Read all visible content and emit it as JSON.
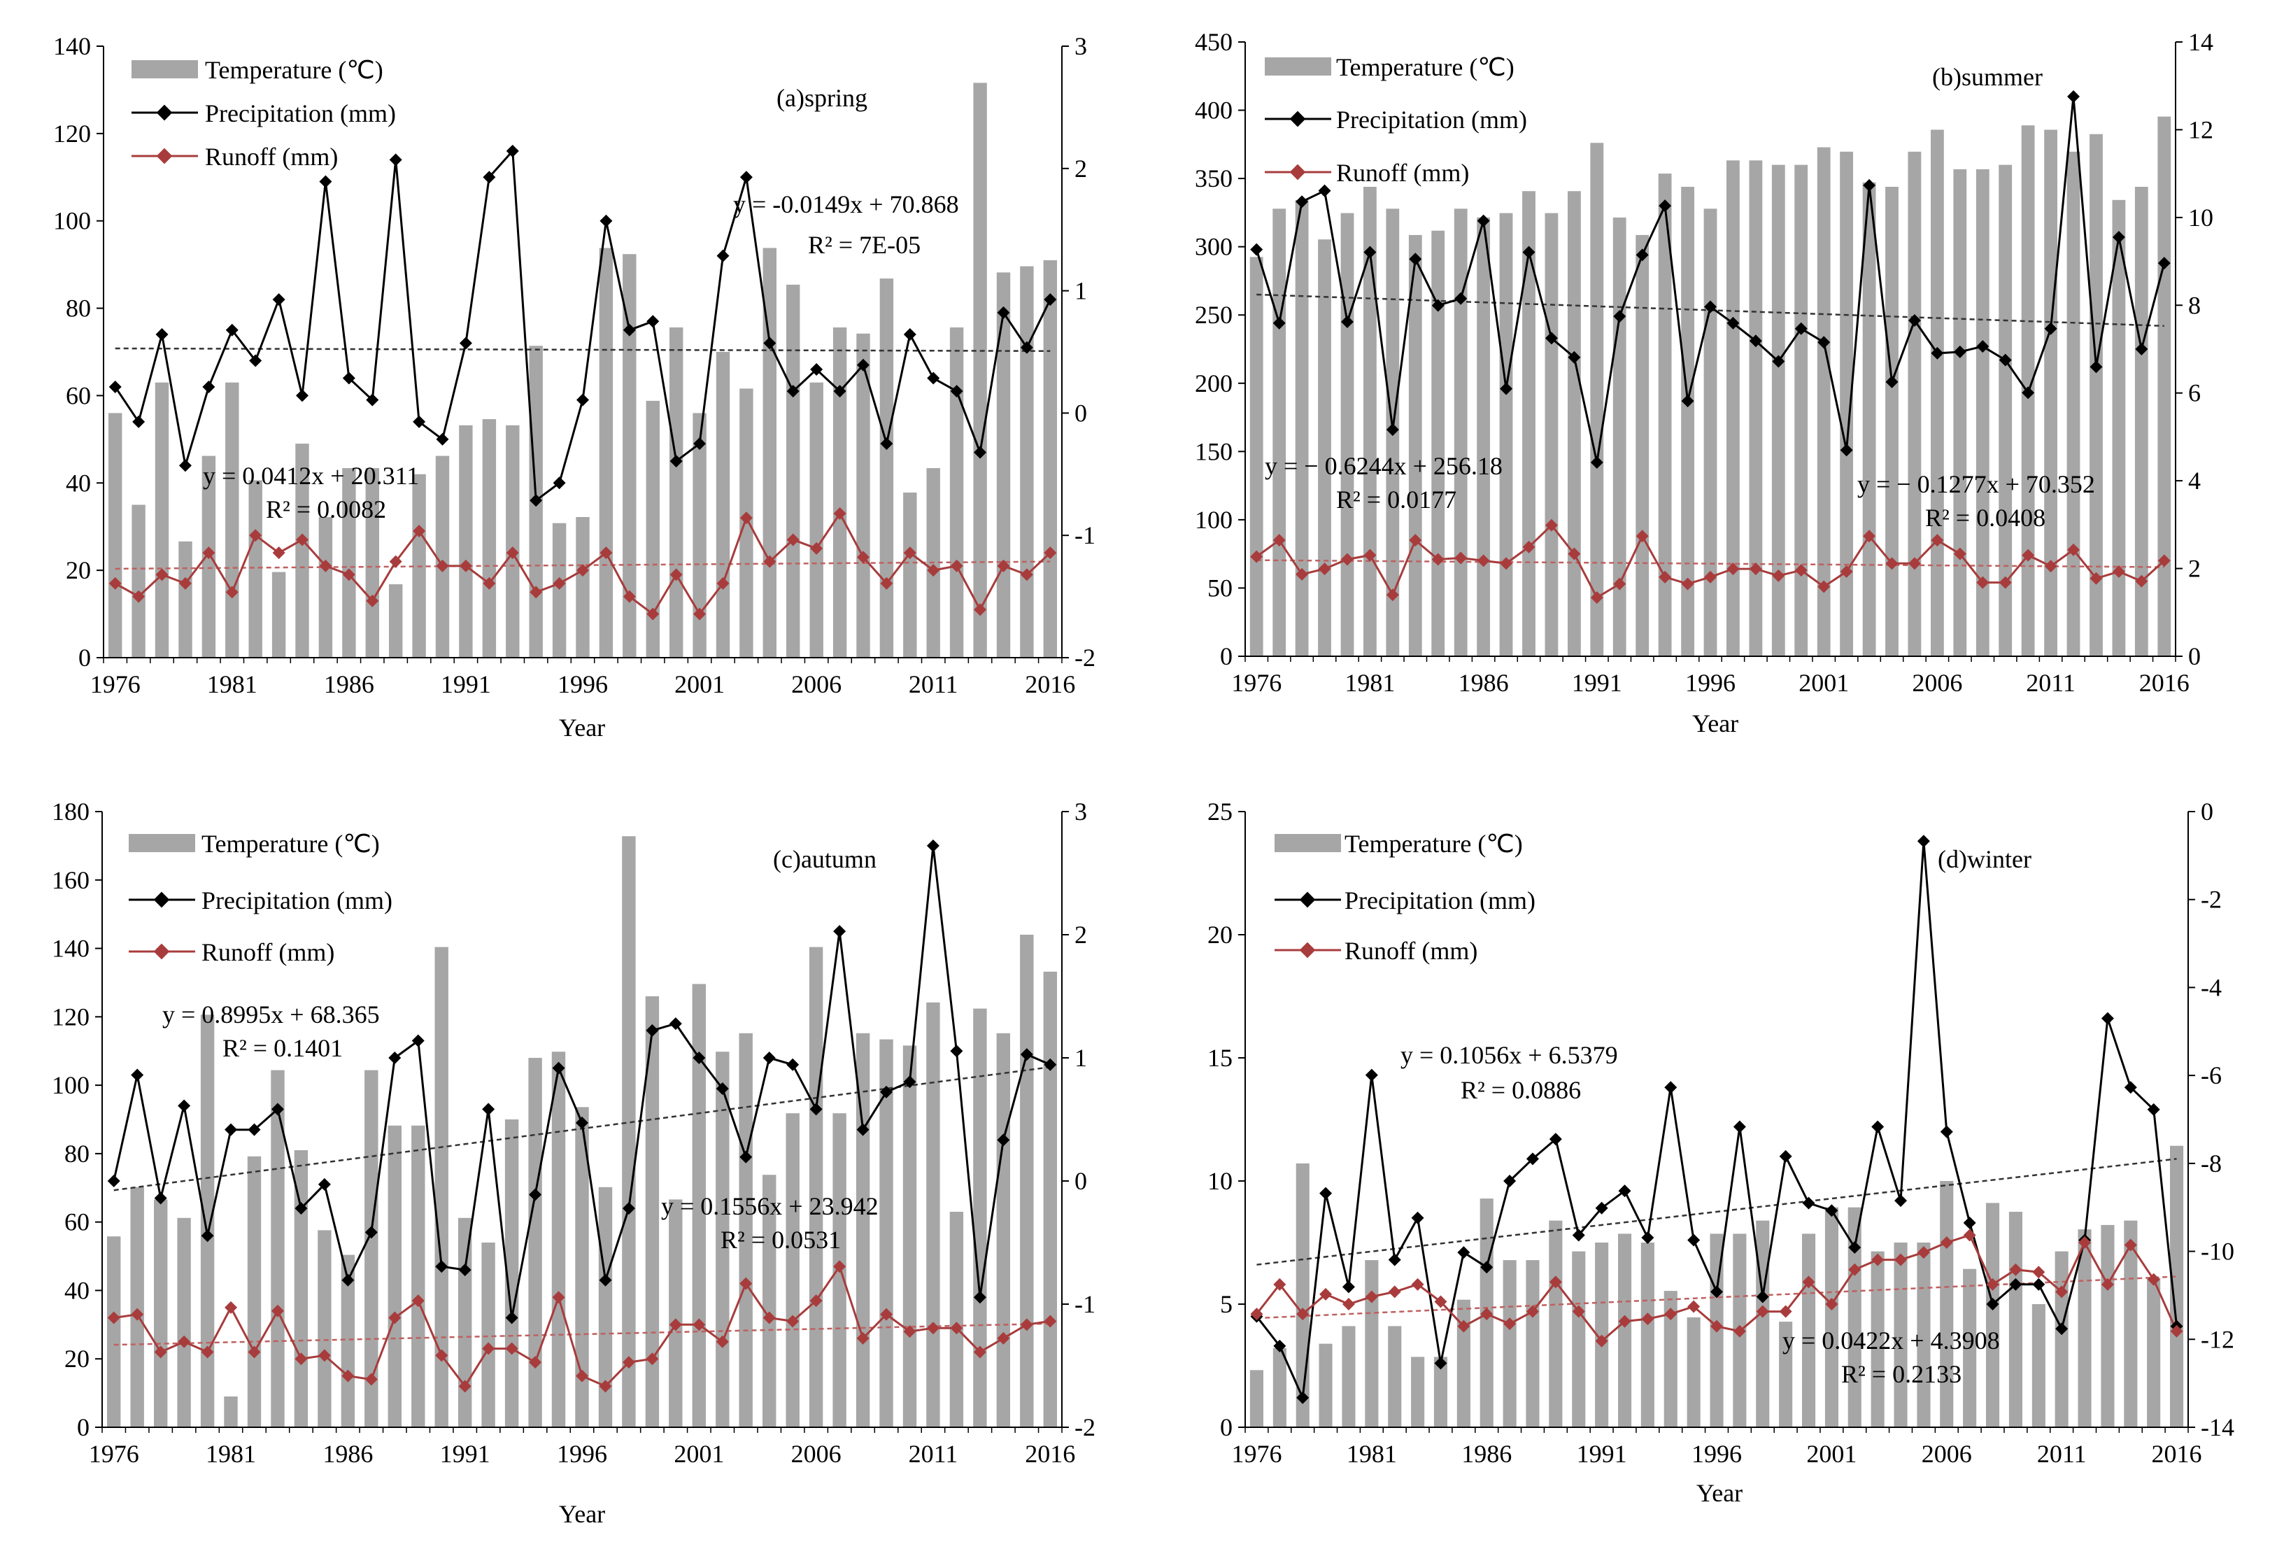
{
  "colors": {
    "bar": "#a6a6a6",
    "precip": "#000000",
    "runoff": "#a83c3c",
    "trend_precip": "#333333",
    "trend_runoff": "#c06060"
  },
  "chart_data": [
    {
      "type": "bar",
      "panel_label": "(a)spring",
      "xlabel": "Year",
      "x_ticks": [
        "1976",
        "1981",
        "1986",
        "1991",
        "1996",
        "2001",
        "2006",
        "2011",
        "2016"
      ],
      "years": [
        1976,
        1977,
        1978,
        1979,
        1980,
        1981,
        1982,
        1983,
        1984,
        1985,
        1986,
        1987,
        1988,
        1989,
        1990,
        1991,
        1992,
        1993,
        1994,
        1995,
        1996,
        1997,
        1998,
        1999,
        2000,
        2001,
        2002,
        2003,
        2004,
        2005,
        2006,
        2007,
        2008,
        2009,
        2010,
        2011,
        2012,
        2013,
        2014,
        2015,
        2016
      ],
      "left_axis": {
        "ticks": [
          "0",
          "20",
          "40",
          "60",
          "80",
          "100",
          "120",
          "140"
        ],
        "min": 0,
        "max": 140
      },
      "right_axis": {
        "ticks": [
          "-2",
          "-1",
          "0",
          "1",
          "2",
          "3"
        ],
        "min": -2,
        "max": 3
      },
      "legend": {
        "temperature": "Temperature (℃)",
        "precipitation": "Precipitation (mm)",
        "runoff": "Runoff (mm)"
      },
      "series": [
        {
          "name": "Temperature (℃)",
          "axis": "right",
          "values": [
            0,
            -0.75,
            0.25,
            -1.05,
            -0.35,
            0.25,
            -0.55,
            -1.3,
            -0.25,
            -0.85,
            -0.45,
            -0.45,
            -1.4,
            -0.5,
            -0.35,
            -0.1,
            -0.05,
            -0.1,
            0.55,
            -0.9,
            -0.85,
            1.35,
            1.3,
            0.1,
            0.7,
            0,
            0.5,
            0.2,
            1.35,
            1.05,
            0.25,
            0.7,
            0.65,
            1.1,
            -0.65,
            -0.45,
            0.7,
            2.7,
            1.15,
            1.2,
            1.25
          ]
        },
        {
          "name": "Precipitation (mm)",
          "axis": "left",
          "values": [
            62,
            54,
            74,
            44,
            62,
            75,
            68,
            82,
            60,
            109,
            64,
            59,
            114,
            54,
            50,
            72,
            110,
            116,
            36,
            40,
            59,
            100,
            75,
            77,
            45,
            49,
            92,
            110,
            72,
            61,
            66,
            61,
            67,
            49,
            74,
            64,
            61,
            47,
            79,
            71,
            82
          ]
        },
        {
          "name": "Runoff (mm)",
          "axis": "left",
          "values": [
            17,
            14,
            19,
            17,
            24,
            15,
            28,
            24,
            27,
            21,
            19,
            13,
            22,
            29,
            21,
            21,
            17,
            24,
            15,
            17,
            20,
            24,
            14,
            10,
            19,
            10,
            17,
            32,
            22,
            27,
            25,
            33,
            23,
            17,
            24,
            20,
            21,
            11,
            21,
            19,
            24
          ]
        }
      ],
      "trend_precip": [
        70.8,
        70.2
      ],
      "trend_runoff": [
        20.35,
        22.0
      ],
      "annotations": [
        {
          "text": "y = -0.0149x  + 70.868"
        },
        {
          "text": "R² = 7E-05"
        },
        {
          "text": "y = 0.0412x  + 20.311"
        },
        {
          "text": "R² = 0.0082"
        }
      ]
    },
    {
      "type": "bar",
      "panel_label": "(b)summer",
      "xlabel": "Year",
      "x_ticks": [
        "1976",
        "1981",
        "1986",
        "1991",
        "1996",
        "2001",
        "2006",
        "2011",
        "2016"
      ],
      "years": [
        1976,
        1977,
        1978,
        1979,
        1980,
        1981,
        1982,
        1983,
        1984,
        1985,
        1986,
        1987,
        1988,
        1989,
        1990,
        1991,
        1992,
        1993,
        1994,
        1995,
        1996,
        1997,
        1998,
        1999,
        2000,
        2001,
        2002,
        2003,
        2004,
        2005,
        2006,
        2007,
        2008,
        2009,
        2010,
        2011,
        2012,
        2013,
        2014,
        2015,
        2016
      ],
      "left_axis": {
        "ticks": [
          "0",
          "50",
          "100",
          "150",
          "200",
          "250",
          "300",
          "350",
          "400",
          "450"
        ],
        "min": 0,
        "max": 450
      },
      "right_axis": {
        "ticks": [
          "0",
          "2",
          "4",
          "6",
          "8",
          "10",
          "12",
          "14"
        ],
        "min": 0,
        "max": 14
      },
      "legend": {
        "temperature": "Temperature (℃)",
        "precipitation": "Precipitation (mm)",
        "runoff": "Runoff  (mm)"
      },
      "series": [
        {
          "name": "Temperature (℃)",
          "axis": "right",
          "values": [
            9.1,
            10.2,
            10.4,
            9.5,
            10.1,
            10.7,
            10.2,
            9.6,
            9.7,
            10.2,
            10.0,
            10.1,
            10.6,
            10.1,
            10.6,
            11.7,
            10.0,
            9.6,
            11.0,
            10.7,
            10.2,
            11.3,
            11.3,
            11.2,
            11.2,
            11.6,
            11.5,
            10.8,
            10.7,
            11.5,
            12.0,
            11.1,
            11.1,
            11.2,
            12.1,
            12.0,
            11.5,
            11.9,
            10.4,
            10.7,
            12.3
          ]
        },
        {
          "name": "Precipitation (mm)",
          "axis": "left",
          "values": [
            298,
            244,
            333,
            341,
            245,
            296,
            166,
            291,
            257,
            262,
            319,
            196,
            296,
            233,
            219,
            142,
            249,
            294,
            330,
            187,
            256,
            244,
            231,
            216,
            240,
            230,
            151,
            345,
            201,
            246,
            222,
            223,
            227,
            217,
            193,
            240,
            410,
            212,
            307,
            225,
            288
          ]
        },
        {
          "name": "Runoff (mm)",
          "axis": "left",
          "values": [
            73,
            85,
            60,
            64,
            71,
            74,
            45,
            85,
            71,
            72,
            70,
            68,
            80,
            96,
            75,
            43,
            53,
            88,
            58,
            53,
            58,
            64,
            64,
            59,
            63,
            51,
            62,
            88,
            68,
            68,
            85,
            75,
            54,
            54,
            74,
            66,
            78,
            57,
            62,
            55,
            70
          ]
        }
      ],
      "trend_precip": [
        265,
        242
      ],
      "trend_runoff": [
        70.4,
        65.3
      ],
      "annotations": [
        {
          "text": "y = − 0.6244x + 256.18"
        },
        {
          "text": "R² = 0.0177"
        },
        {
          "text": "y = − 0.1277x + 70.352"
        },
        {
          "text": "R² = 0.0408"
        }
      ]
    },
    {
      "type": "bar",
      "panel_label": "(c)autumn",
      "xlabel": "Year",
      "x_ticks": [
        "1976",
        "1981",
        "1986",
        "1991",
        "1996",
        "2001",
        "2006",
        "2011",
        "2016"
      ],
      "years": [
        1976,
        1977,
        1978,
        1979,
        1980,
        1981,
        1982,
        1983,
        1984,
        1985,
        1986,
        1987,
        1988,
        1989,
        1990,
        1991,
        1992,
        1993,
        1994,
        1995,
        1996,
        1997,
        1998,
        1999,
        2000,
        2001,
        2002,
        2003,
        2004,
        2005,
        2006,
        2007,
        2008,
        2009,
        2010,
        2011,
        2012,
        2013,
        2014,
        2015,
        2016
      ],
      "left_axis": {
        "ticks": [
          "0",
          "20",
          "40",
          "60",
          "80",
          "100",
          "120",
          "140",
          "160",
          "180"
        ],
        "min": 0,
        "max": 180
      },
      "right_axis": {
        "ticks": [
          "-2",
          "-1",
          "0",
          "1",
          "2",
          "3"
        ],
        "min": -2,
        "max": 3
      },
      "legend": {
        "temperature": "Temperature (℃)",
        "precipitation": "Precipitation (mm)",
        "runoff": "Runoff  (mm)"
      },
      "series": [
        {
          "name": "Temperature (℃)",
          "axis": "right",
          "values": [
            -0.45,
            -0.05,
            -0.15,
            -0.3,
            1.35,
            -1.75,
            0.2,
            0.9,
            0.25,
            -0.4,
            -0.6,
            0.9,
            0.45,
            0.45,
            1.9,
            -0.3,
            -0.5,
            0.5,
            1.0,
            1.05,
            0.6,
            -0.05,
            2.8,
            1.5,
            -0.15,
            1.6,
            1.05,
            1.2,
            0.05,
            0.55,
            1.9,
            0.55,
            1.2,
            1.15,
            1.1,
            1.45,
            -0.25,
            1.4,
            1.2,
            2.0,
            1.7
          ]
        },
        {
          "name": "Precipitation (mm)",
          "axis": "left",
          "values": [
            72,
            103,
            67,
            94,
            56,
            87,
            87,
            93,
            64,
            71,
            43,
            57,
            108,
            113,
            47,
            46,
            93,
            32,
            68,
            105,
            89,
            43,
            64,
            116,
            118,
            108,
            99,
            79,
            108,
            106,
            93,
            145,
            87,
            98,
            101,
            170,
            110,
            38,
            84,
            109,
            106
          ]
        },
        {
          "name": "Runoff (mm)",
          "axis": "left",
          "values": [
            32,
            33,
            22,
            25,
            22,
            35,
            22,
            34,
            20,
            21,
            15,
            14,
            32,
            37,
            21,
            12,
            23,
            23,
            19,
            38,
            15,
            12,
            19,
            20,
            30,
            30,
            25,
            42,
            32,
            31,
            37,
            47,
            26,
            33,
            28,
            29,
            29,
            22,
            26,
            30,
            31
          ]
        }
      ],
      "trend_precip": [
        69.3,
        105.3
      ],
      "trend_runoff": [
        24.1,
        30.3
      ],
      "annotations": [
        {
          "text": "y = 0.8995x  + 68.365"
        },
        {
          "text": "R² = 0.1401"
        },
        {
          "text": "y = 0.1556x  + 23.942"
        },
        {
          "text": "R² = 0.0531"
        }
      ]
    },
    {
      "type": "bar",
      "panel_label": "(d)winter",
      "xlabel": "Year",
      "x_ticks": [
        "1976",
        "1981",
        "1986",
        "1991",
        "1996",
        "2001",
        "2006",
        "2011",
        "2016"
      ],
      "years": [
        1976,
        1977,
        1978,
        1979,
        1980,
        1981,
        1982,
        1983,
        1984,
        1985,
        1986,
        1987,
        1988,
        1989,
        1990,
        1991,
        1992,
        1993,
        1994,
        1995,
        1996,
        1997,
        1998,
        1999,
        2000,
        2001,
        2002,
        2003,
        2004,
        2005,
        2006,
        2007,
        2008,
        2009,
        2010,
        2011,
        2012,
        2013,
        2014,
        2015,
        2016
      ],
      "left_axis": {
        "ticks": [
          "0",
          "5",
          "10",
          "15",
          "20",
          "25"
        ],
        "min": 0,
        "max": 25
      },
      "right_axis": {
        "ticks": [
          "-14",
          "-12",
          "-10",
          "-8",
          "-6",
          "-4",
          "-2",
          "0"
        ],
        "min": -14,
        "max": 0
      },
      "legend": {
        "temperature": "Temperature (℃)",
        "precipitation": "Precipitation (mm)",
        "runoff": "Runoff  (mm)"
      },
      "series": [
        {
          "name": "Temperature (℃)",
          "axis": "right",
          "values": [
            -12.7,
            -12.2,
            -8.0,
            -12.1,
            -11.7,
            -10.2,
            -11.7,
            -12.4,
            -12.4,
            -11.1,
            -8.8,
            -10.2,
            -10.2,
            -9.3,
            -10.0,
            -9.8,
            -9.6,
            -9.8,
            -10.9,
            -11.5,
            -9.6,
            -9.6,
            -9.3,
            -11.6,
            -9.6,
            -9.0,
            -9.0,
            -10.0,
            -9.8,
            -9.8,
            -8.4,
            -10.4,
            -8.9,
            -9.1,
            -11.2,
            -10.0,
            -9.5,
            -9.4,
            -9.3,
            -10.6,
            -7.6
          ]
        },
        {
          "name": "Precipitation (mm)",
          "axis": "left",
          "values": [
            4.5,
            3.3,
            1.2,
            9.5,
            5.7,
            14.3,
            6.8,
            8.5,
            2.6,
            7.1,
            6.5,
            10.0,
            10.9,
            11.7,
            7.8,
            8.9,
            9.6,
            7.7,
            13.8,
            7.6,
            5.5,
            12.2,
            5.3,
            11.0,
            9.1,
            8.8,
            7.3,
            12.2,
            9.2,
            23.8,
            12.0,
            8.3,
            5.0,
            5.8,
            5.8,
            4.0,
            7.6,
            16.6,
            13.8,
            12.9,
            4.1
          ]
        },
        {
          "name": "Runoff (mm)",
          "axis": "left",
          "values": [
            4.6,
            5.8,
            4.6,
            5.4,
            5.0,
            5.3,
            5.5,
            5.8,
            5.1,
            4.1,
            4.6,
            4.2,
            4.7,
            5.9,
            4.7,
            3.5,
            4.3,
            4.4,
            4.6,
            4.9,
            4.1,
            3.9,
            4.7,
            4.7,
            5.9,
            5.0,
            6.4,
            6.8,
            6.8,
            7.1,
            7.5,
            7.8,
            5.8,
            6.4,
            6.3,
            5.5,
            7.5,
            5.8,
            7.4,
            6.0,
            3.9
          ]
        }
      ],
      "trend_precip": [
        6.6,
        10.9
      ],
      "trend_runoff": [
        4.43,
        6.12
      ],
      "annotations": [
        {
          "text": "y = 0.1056x  + 6.5379"
        },
        {
          "text": "R² = 0.0886"
        },
        {
          "text": "y = 0.0422x  + 4.3908"
        },
        {
          "text": "R² = 0.2133"
        }
      ]
    }
  ]
}
